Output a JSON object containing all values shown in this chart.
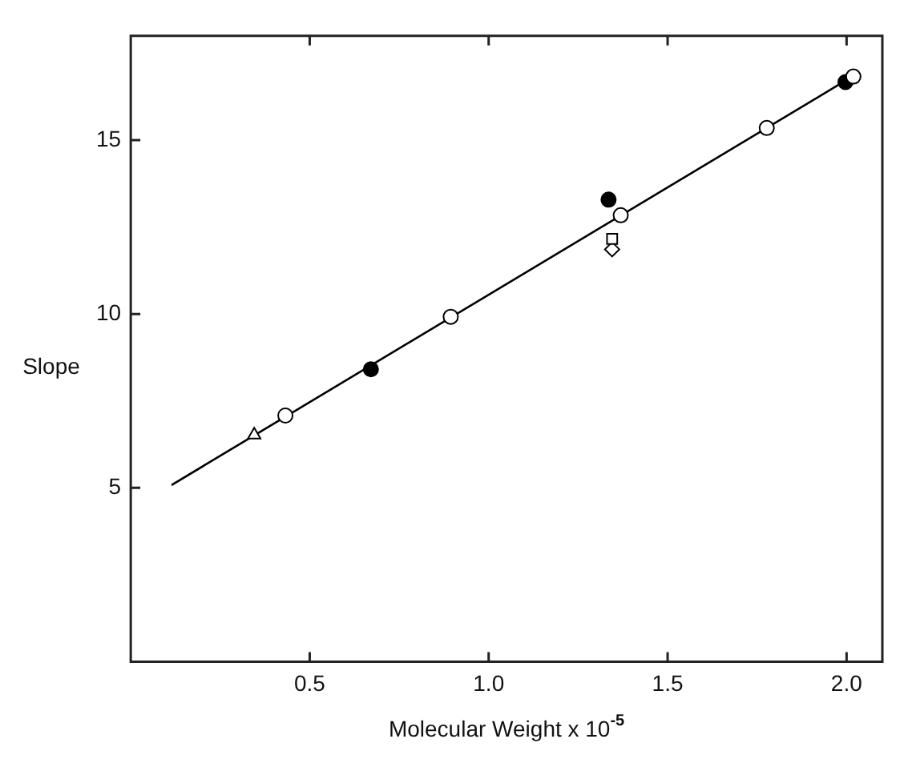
{
  "chart_data": {
    "type": "scatter",
    "xlabel": "Molecular Weight x 10$^{-5}$",
    "ylabel": "Slope",
    "xlim": [
      0,
      2.1
    ],
    "ylim": [
      0,
      18
    ],
    "xticks": [
      0.5,
      {
        "value": 1,
        "label": "1.0"
      },
      1.5,
      {
        "value": 2,
        "label": "2.0"
      }
    ],
    "yticks": [
      5,
      10,
      15
    ],
    "grid": false,
    "legend": false,
    "series": [
      {
        "marker": "circle",
        "color": "#ffffff",
        "x": [
          0.432,
          0.894,
          1.369,
          1.777,
          2.019
        ],
        "values": [
          7.08,
          9.92,
          12.84,
          15.35,
          16.83
        ]
      },
      {
        "marker": "circle",
        "color": "#000000",
        "x": [
          0.671,
          1.335,
          1.997
        ],
        "values": [
          8.41,
          13.29,
          16.67
        ]
      },
      {
        "marker": "triangle",
        "color": "#ffffff",
        "x": [
          0.345
        ],
        "values": [
          6.52
        ]
      },
      {
        "marker": "square",
        "color": "#ffffff",
        "x": [
          1.345
        ],
        "values": [
          12.16
        ]
      },
      {
        "marker": "diamond",
        "color": "#ffffff",
        "x": [
          1.345
        ],
        "values": [
          11.86
        ]
      },
      {
        "type": "line",
        "marker": "none",
        "line_style": "solid",
        "color": "#000000",
        "x": [
          0.114,
          2.0
        ],
        "values": [
          5.08,
          16.73
        ]
      }
    ]
  }
}
